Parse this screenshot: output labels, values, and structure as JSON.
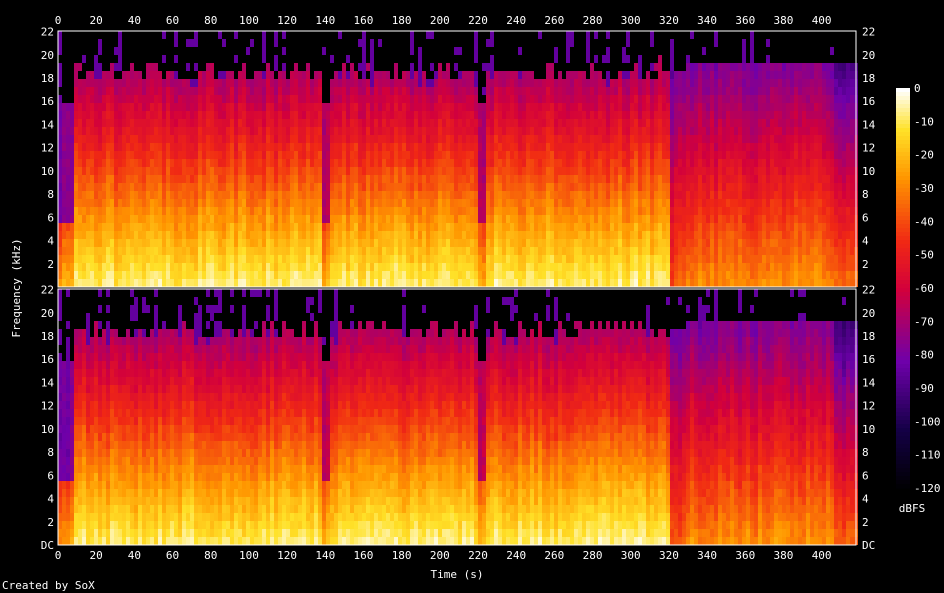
{
  "chart_data": {
    "type": "heatmap",
    "x_axis": {
      "label": "Time (s)",
      "ticks": [
        0,
        20,
        40,
        60,
        80,
        100,
        120,
        140,
        160,
        180,
        200,
        220,
        240,
        260,
        280,
        300,
        320,
        340,
        360,
        380,
        400
      ],
      "range": [
        0,
        418
      ]
    },
    "y_axis": {
      "label": "Frequency (kHz)",
      "range": [
        0,
        22.05
      ],
      "channels": [
        {
          "name": "channel-1",
          "ticks": [
            2,
            4,
            6,
            8,
            10,
            12,
            14,
            16,
            18,
            20,
            22
          ]
        },
        {
          "name": "channel-2",
          "ticks": [
            "DC",
            2,
            4,
            6,
            8,
            10,
            12,
            14,
            16,
            18,
            20,
            22
          ]
        }
      ]
    },
    "colorbar": {
      "label": "dBFS",
      "range": [
        -120,
        0
      ],
      "ticks": [
        0,
        -10,
        -20,
        -30,
        -40,
        -50,
        -60,
        -70,
        -80,
        -90,
        -100,
        -110,
        -120
      ]
    },
    "segments": [
      {
        "start": 0,
        "end": 7,
        "level": "quiet"
      },
      {
        "start": 7,
        "end": 138,
        "level": "loud"
      },
      {
        "start": 138,
        "end": 142,
        "level": "gap"
      },
      {
        "start": 142,
        "end": 218,
        "level": "loud"
      },
      {
        "start": 218,
        "end": 224,
        "level": "gap"
      },
      {
        "start": 224,
        "end": 320,
        "level": "loud"
      },
      {
        "start": 320,
        "end": 328,
        "level": "transition"
      },
      {
        "start": 328,
        "end": 380,
        "level": "sparse"
      },
      {
        "start": 380,
        "end": 405,
        "level": "sparse"
      },
      {
        "start": 405,
        "end": 418,
        "level": "fade"
      }
    ],
    "footer": "Created by SoX"
  }
}
